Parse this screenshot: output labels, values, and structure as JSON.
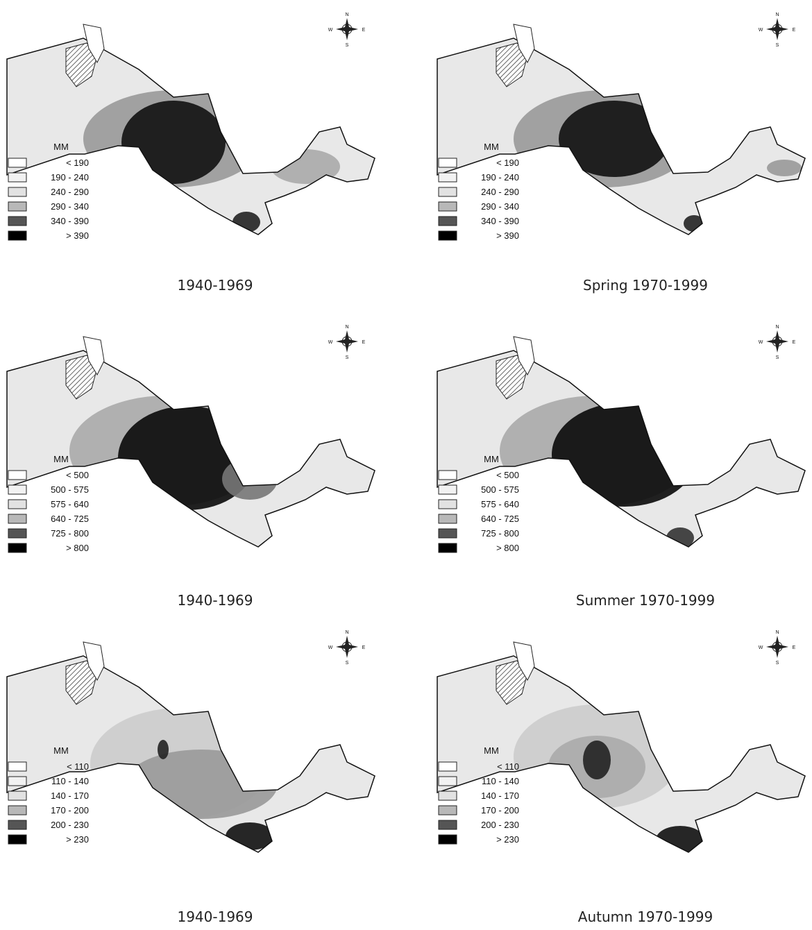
{
  "compass": {
    "north": "N",
    "west": "W",
    "east": "E",
    "south": "S"
  },
  "panels": [
    {
      "caption": "1940-1969",
      "legend_title": "MM",
      "legend": [
        "< 190",
        "190 - 240",
        "240 - 290",
        "290 - 340",
        "340 - 390",
        "> 390"
      ]
    },
    {
      "caption": "Spring 1970-1999",
      "legend_title": "MM",
      "legend": [
        "< 190",
        "190 - 240",
        "240 - 290",
        "290 - 340",
        "340 - 390",
        "> 390"
      ]
    },
    {
      "caption": "1940-1969",
      "legend_title": "MM",
      "legend": [
        "< 500",
        "500 - 575",
        "575 - 640",
        "640 - 725",
        "725 - 800",
        "> 800"
      ]
    },
    {
      "caption": "Summer 1970-1999",
      "legend_title": "MM",
      "legend": [
        "< 500",
        "500 - 575",
        "575 - 640",
        "640 - 725",
        "725 - 800",
        "> 800"
      ]
    },
    {
      "caption": "1940-1969",
      "legend_title": "MM",
      "legend": [
        "< 110",
        "110 - 140",
        "140 - 170",
        "170 - 200",
        "200 - 230",
        "> 230"
      ]
    },
    {
      "caption": "Autumn 1970-1999",
      "legend_title": "MM",
      "legend": [
        "< 110",
        "110 - 140",
        "140 - 170",
        "170 - 200",
        "200 - 230",
        "> 230"
      ]
    }
  ]
}
